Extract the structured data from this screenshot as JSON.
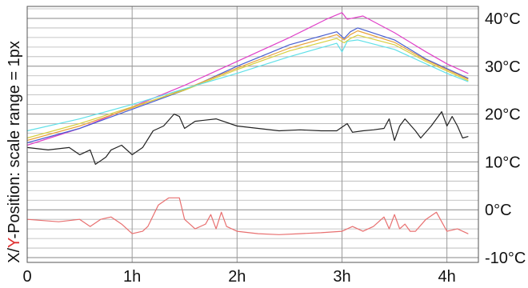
{
  "chart_data": {
    "type": "line",
    "title": "",
    "xlabel": "",
    "ylabel_prefix": "X/",
    "ylabel_highlight": "Y",
    "ylabel_suffix": "-Position: scale range = 1px",
    "x_unit": "h",
    "x_ticks": [
      {
        "label": "0",
        "value": 0
      },
      {
        "label": "1h",
        "value": 1
      },
      {
        "label": "2h",
        "value": 2
      },
      {
        "label": "3h",
        "value": 3
      },
      {
        "label": "4h",
        "value": 4
      }
    ],
    "y_ticks": [
      {
        "label": "40°C",
        "value": 40
      },
      {
        "label": "30°C",
        "value": 30
      },
      {
        "label": "20°C",
        "value": 20
      },
      {
        "label": "10°C",
        "value": 10
      },
      {
        "label": "0°C",
        "value": 0
      },
      {
        "label": "-10°C",
        "value": -10
      }
    ],
    "xlim": [
      0,
      4.3
    ],
    "ylim": [
      -11,
      42.5
    ],
    "grid": true,
    "colors": {
      "magenta": "#e040c8",
      "blue": "#4a5fd0",
      "orange": "#e8a23a",
      "yellow": "#d8d040",
      "cyan": "#60e0e8",
      "black": "#222222",
      "red": "#e87070",
      "ylabel_highlight": "#e03030"
    },
    "series": [
      {
        "color": "magenta",
        "x": [
          0,
          0.5,
          1,
          1.5,
          2,
          2.5,
          2.85,
          3.0,
          3.05,
          3.2,
          3.5,
          3.8,
          4.0,
          4.2
        ],
        "y": [
          13.5,
          17,
          21.5,
          26,
          31,
          36,
          39.8,
          41.2,
          39.8,
          40.5,
          37,
          33,
          30.5,
          28.5
        ]
      },
      {
        "color": "blue",
        "x": [
          0,
          0.5,
          1,
          1.5,
          2,
          2.5,
          2.95,
          3.02,
          3.08,
          3.15,
          3.5,
          3.8,
          4.0,
          4.2
        ],
        "y": [
          14,
          17,
          21,
          25,
          30,
          34.5,
          37.2,
          35.8,
          37.2,
          38,
          35.5,
          31.5,
          29.5,
          27.5
        ]
      },
      {
        "color": "orange",
        "x": [
          0,
          0.5,
          1,
          1.5,
          2,
          2.5,
          2.95,
          3.02,
          3.08,
          3.15,
          3.5,
          3.8,
          4.0,
          4.2
        ],
        "y": [
          14.5,
          17.5,
          21.3,
          25.2,
          29.6,
          33.8,
          36.6,
          35.5,
          36.6,
          37.4,
          35,
          31.3,
          29.3,
          27.3
        ]
      },
      {
        "color": "yellow",
        "x": [
          0,
          0.5,
          1,
          1.5,
          2,
          2.5,
          2.95,
          3.02,
          3.08,
          3.15,
          3.5,
          3.8,
          4.0,
          4.2
        ],
        "y": [
          15,
          18,
          21.5,
          25,
          29.3,
          33.2,
          35.8,
          34.9,
          35.8,
          36.5,
          34.5,
          31,
          29,
          27
        ]
      },
      {
        "color": "cyan",
        "x": [
          0,
          0.5,
          1,
          1.5,
          2,
          2.5,
          2.95,
          3.0,
          3.05,
          3.15,
          3.5,
          3.8,
          4.0,
          4.2
        ],
        "y": [
          16.5,
          19,
          22,
          25.3,
          28.5,
          32,
          34.8,
          33,
          35.2,
          35.5,
          33.5,
          30.5,
          28.5,
          26.8
        ]
      },
      {
        "color": "black",
        "x": [
          0,
          0.2,
          0.4,
          0.5,
          0.6,
          0.65,
          0.75,
          0.8,
          0.9,
          1.0,
          1.1,
          1.2,
          1.3,
          1.4,
          1.45,
          1.5,
          1.6,
          1.8,
          2.0,
          2.2,
          2.4,
          2.6,
          2.8,
          2.95,
          3.05,
          3.1,
          3.2,
          3.3,
          3.4,
          3.45,
          3.5,
          3.55,
          3.6,
          3.7,
          3.75,
          3.85,
          3.9,
          3.95,
          4.0,
          4.05,
          4.1,
          4.15,
          4.2
        ],
        "y": [
          13,
          12.5,
          13,
          11.5,
          12.5,
          9.5,
          11,
          12.5,
          13.5,
          11.5,
          13,
          16.5,
          17.5,
          20,
          19.5,
          17,
          18.5,
          19,
          17.5,
          17,
          16.5,
          16.7,
          16.5,
          16.5,
          18,
          16.2,
          16.5,
          16.7,
          17,
          19,
          14.5,
          17.5,
          19,
          16.5,
          15,
          17.5,
          19,
          20.5,
          17.5,
          19.5,
          17.5,
          15,
          15.3
        ]
      },
      {
        "color": "red",
        "x": [
          0,
          0.3,
          0.5,
          0.6,
          0.7,
          0.8,
          0.9,
          1.0,
          1.1,
          1.15,
          1.25,
          1.35,
          1.45,
          1.5,
          1.6,
          1.7,
          1.75,
          1.8,
          1.85,
          1.9,
          2.0,
          2.2,
          2.4,
          2.6,
          2.8,
          3.0,
          3.1,
          3.2,
          3.3,
          3.4,
          3.45,
          3.5,
          3.55,
          3.6,
          3.65,
          3.7,
          3.8,
          3.9,
          3.95,
          4.0,
          4.1,
          4.2
        ],
        "y": [
          -2,
          -2.5,
          -2,
          -3.5,
          -2,
          -1.5,
          -3,
          -5,
          -4.5,
          -3.5,
          1,
          2.5,
          2.5,
          -2,
          -4,
          -3,
          -1,
          -4,
          -0.5,
          -3.5,
          -4.5,
          -5,
          -5.2,
          -5,
          -4.8,
          -4.5,
          -3.5,
          -4.5,
          -3.5,
          -1.5,
          -4,
          -1,
          -4,
          -3,
          -4.5,
          -4.5,
          -2,
          -0.5,
          -2.5,
          -4.5,
          -4,
          -5
        ]
      }
    ]
  }
}
